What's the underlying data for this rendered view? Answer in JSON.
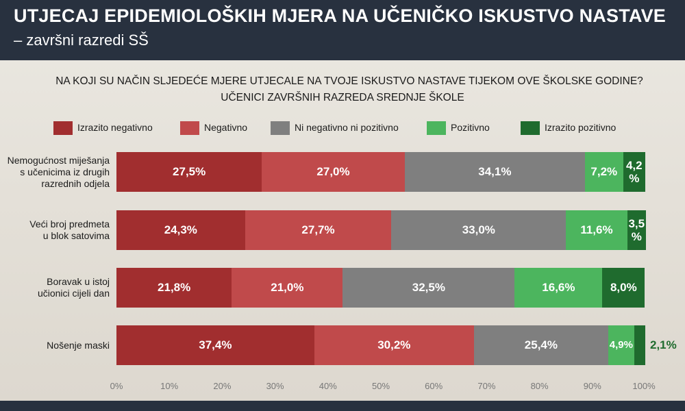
{
  "header": {
    "title": "UTJECAJ EPIDEMIOLOŠKIH MJERA NA UČENIČKO ISKUSTVO NASTAVE",
    "subtitle": "– završni razredi SŠ"
  },
  "chart_data": {
    "type": "bar",
    "orientation": "horizontal",
    "stacked": true,
    "title": "NA KOJI SU NAČIN SLJEDEĆE MJERE UTJECALE NA TVOJE ISKUSTVO NASTAVE TIJEKOM OVE ŠKOLSKE GODINE?",
    "subtitle": "UČENICI ZAVRŠNIH RAZREDA SREDNJE ŠKOLE",
    "categories": [
      "Nemogućnost miješanja s učenicima iz drugih razrednih odjela",
      "Veći broj predmeta u blok satovima",
      "Boravak u istoj učionici cijeli dan",
      "Nošenje maski"
    ],
    "category_lines": [
      [
        "Nemogućnost miješanja",
        "s učenicima iz drugih",
        "razrednih odjela"
      ],
      [
        "Veći broj predmeta",
        "u blok satovima"
      ],
      [
        "Boravak u istoj",
        "učionici cijeli dan"
      ],
      [
        "Nošenje maski"
      ]
    ],
    "series": [
      {
        "name": "Izrazito negativno",
        "color": "#a12e2f",
        "values": [
          27.5,
          24.3,
          21.8,
          37.4
        ],
        "labels": [
          "27,5%",
          "24,3%",
          "21,8%",
          "37,4%"
        ]
      },
      {
        "name": "Negativno",
        "color": "#c04a4b",
        "values": [
          27.0,
          27.7,
          21.0,
          30.2
        ],
        "labels": [
          "27,0%",
          "27,7%",
          "21,0%",
          "30,2%"
        ]
      },
      {
        "name": "Ni negativno ni pozitivno",
        "color": "#7f7f7f",
        "values": [
          34.1,
          33.0,
          32.5,
          25.4
        ],
        "labels": [
          "34,1%",
          "33,0%",
          "32,5%",
          "25,4%"
        ]
      },
      {
        "name": "Pozitivno",
        "color": "#4cb55e",
        "values": [
          7.2,
          11.6,
          16.6,
          4.9
        ],
        "labels": [
          "7,2%",
          "11,6%",
          "16,6%",
          "4,9%"
        ]
      },
      {
        "name": "Izrazito pozitivno",
        "color": "#1f6b2e",
        "values": [
          4.2,
          3.5,
          8.0,
          2.1
        ],
        "labels": [
          "4,2 %",
          "3,5 %",
          "8,0%",
          "2,1%"
        ]
      }
    ],
    "xticks": [
      "0%",
      "10%",
      "20%",
      "30%",
      "40%",
      "50%",
      "60%",
      "70%",
      "80%",
      "90%",
      "100%"
    ],
    "xlim": [
      0,
      100
    ],
    "legend": "top",
    "grid": false
  }
}
